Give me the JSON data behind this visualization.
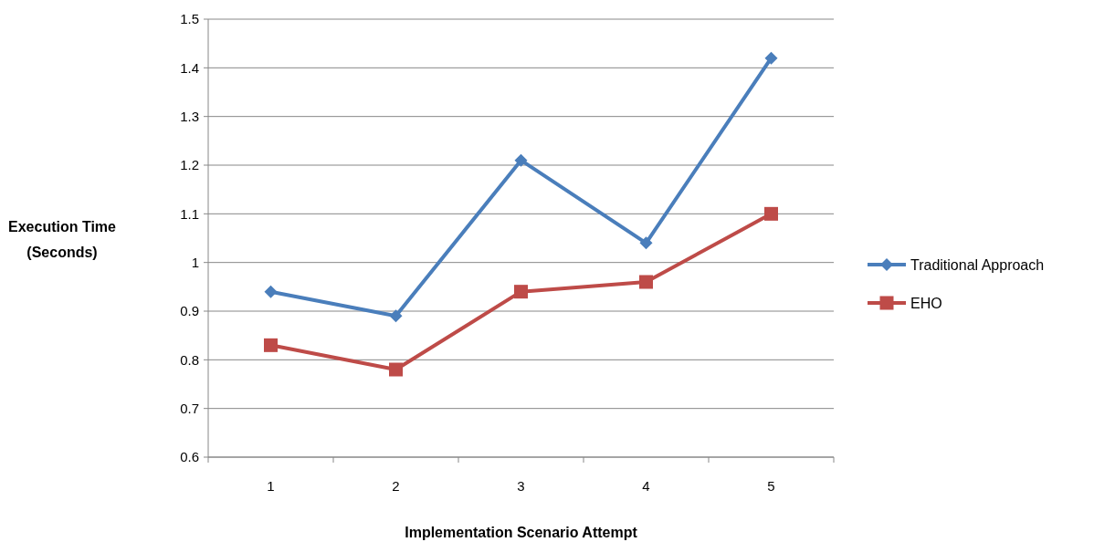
{
  "chart_data": {
    "type": "line",
    "xlabel": "Implementation Scenario Attempt",
    "ylabel": "Execution Time\n(Seconds)",
    "categories": [
      "1",
      "2",
      "3",
      "4",
      "5"
    ],
    "series": [
      {
        "name": "Traditional Approach",
        "color": "#4a7ebb",
        "marker": "diamond",
        "values": [
          0.94,
          0.89,
          1.21,
          1.04,
          1.42
        ]
      },
      {
        "name": "EHO",
        "color": "#be4b48",
        "marker": "square",
        "values": [
          0.83,
          0.78,
          0.94,
          0.96,
          1.1
        ]
      }
    ],
    "ylim": [
      0.6,
      1.5
    ],
    "yticks": [
      0.6,
      0.7,
      0.8,
      0.9,
      1,
      1.1,
      1.2,
      1.3,
      1.4,
      1.5
    ],
    "grid": "y",
    "legend": "right",
    "line_style": "solid"
  }
}
